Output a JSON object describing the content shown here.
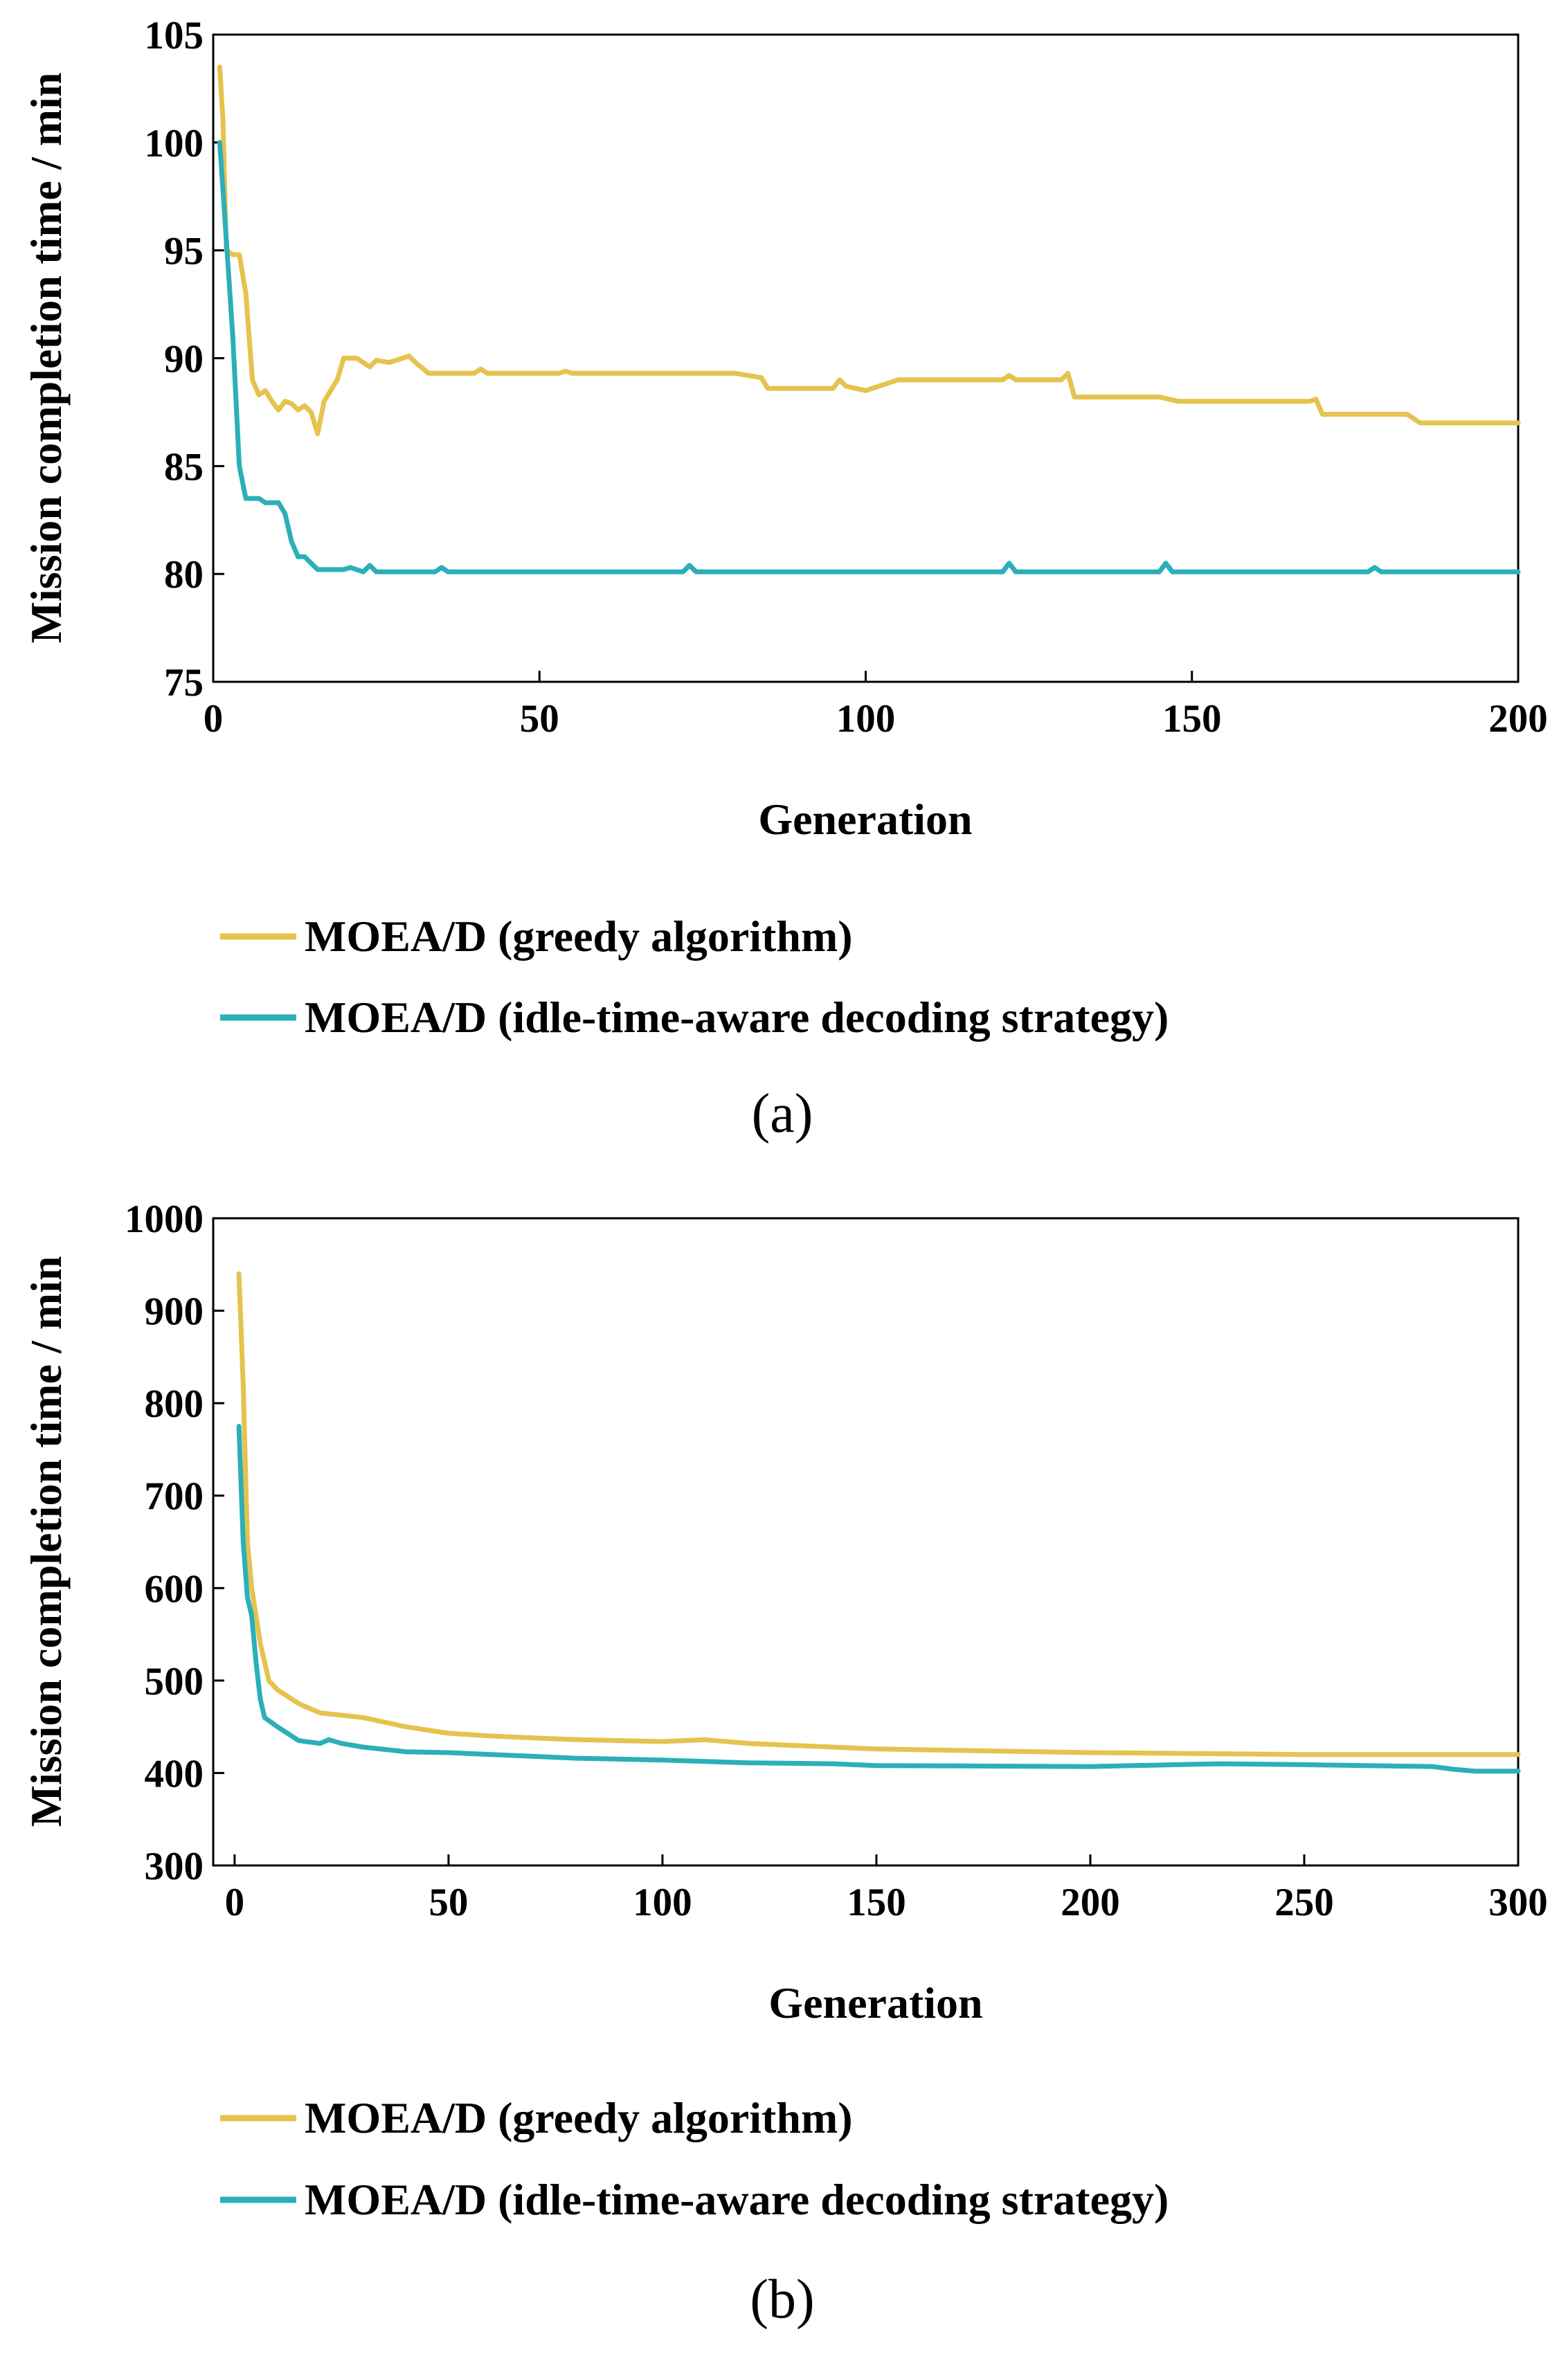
{
  "chart_data": [
    {
      "type": "line",
      "panel_label": "(a)",
      "xlabel": "Generation",
      "ylabel": "Mission completion time / min",
      "xlim": [
        0,
        200
      ],
      "ylim": [
        75,
        105
      ],
      "xticks": [
        0,
        50,
        100,
        150,
        200
      ],
      "xtick_labels": [
        "0",
        "50",
        "100",
        "150",
        "200"
      ],
      "yticks": [
        75,
        80,
        85,
        90,
        95,
        100,
        105
      ],
      "ytick_labels": [
        "75",
        "80",
        "85",
        "90",
        "95",
        "100",
        "105"
      ],
      "grid": false,
      "legend_position": "bottom",
      "series": [
        {
          "name": "MOEA/D (greedy algorithm)",
          "color": "#E6C24E",
          "x": [
            1,
            1.5,
            2,
            3,
            4,
            5,
            6,
            7,
            8,
            9,
            10,
            11,
            12,
            13,
            14,
            15,
            16,
            17,
            18,
            19,
            20,
            21,
            22,
            24,
            25,
            27,
            30,
            31,
            33,
            40,
            41,
            42,
            53,
            54,
            55,
            80,
            82,
            84,
            85,
            90,
            95,
            96,
            97,
            100,
            103,
            105,
            121,
            122,
            123,
            130,
            131,
            132,
            145,
            148,
            150,
            165,
            168,
            169,
            170,
            183,
            184,
            185,
            200
          ],
          "values": [
            103.5,
            101,
            95,
            94.8,
            94.8,
            93,
            89,
            88.3,
            88.5,
            88,
            87.6,
            88,
            87.9,
            87.6,
            87.8,
            87.5,
            86.5,
            88,
            88.5,
            89,
            90,
            90,
            90,
            89.6,
            89.9,
            89.8,
            90.1,
            89.8,
            89.3,
            89.3,
            89.5,
            89.3,
            89.3,
            89.4,
            89.3,
            89.3,
            89.2,
            89.1,
            88.6,
            88.6,
            88.6,
            89,
            88.7,
            88.5,
            88.8,
            89,
            89,
            89.2,
            89,
            89,
            89.3,
            88.2,
            88.2,
            88,
            88,
            88,
            88,
            88.1,
            87.4,
            87.4,
            87.2,
            87,
            87
          ]
        },
        {
          "name": "MOEA/D (idle-time-aware decoding strategy)",
          "color": "#2BAFB9",
          "x": [
            1,
            2,
            3,
            4,
            5,
            6,
            7,
            8,
            9,
            10,
            11,
            12,
            13,
            14,
            15,
            16,
            17,
            20,
            21,
            22,
            23,
            24,
            25,
            34,
            35,
            36,
            72,
            73,
            74,
            121,
            122,
            123,
            145,
            146,
            147,
            177,
            178,
            179,
            200
          ],
          "values": [
            100,
            95.5,
            91,
            85,
            83.5,
            83.5,
            83.5,
            83.3,
            83.3,
            83.3,
            82.8,
            81.5,
            80.8,
            80.8,
            80.5,
            80.2,
            80.2,
            80.2,
            80.3,
            80.2,
            80.1,
            80.4,
            80.1,
            80.1,
            80.3,
            80.1,
            80.1,
            80.4,
            80.1,
            80.1,
            80.5,
            80.1,
            80.1,
            80.5,
            80.1,
            80.1,
            80.3,
            80.1,
            80.1
          ]
        }
      ]
    },
    {
      "type": "line",
      "panel_label": "(b)",
      "xlabel": "Generation",
      "ylabel": "Mission completion time / min",
      "xlim": [
        -5,
        300
      ],
      "ylim": [
        300,
        1000
      ],
      "xticks": [
        0,
        50,
        100,
        150,
        200,
        250,
        300
      ],
      "xtick_labels": [
        "0",
        "50",
        "100",
        "150",
        "200",
        "250",
        "300"
      ],
      "yticks": [
        300,
        400,
        500,
        600,
        700,
        800,
        900,
        1000
      ],
      "ytick_labels": [
        "300",
        "400",
        "500",
        "600",
        "700",
        "800",
        "900",
        "1000"
      ],
      "grid": false,
      "legend_position": "bottom",
      "series": [
        {
          "name": "MOEA/D (greedy algorithm)",
          "color": "#E6C24E",
          "x": [
            1,
            2,
            3,
            4,
            5,
            6,
            7,
            8,
            10,
            15,
            20,
            30,
            40,
            50,
            60,
            70,
            80,
            100,
            110,
            120,
            150,
            200,
            250,
            300
          ],
          "values": [
            940,
            820,
            650,
            600,
            570,
            540,
            520,
            500,
            490,
            475,
            465,
            460,
            450,
            443,
            440,
            438,
            436,
            434,
            436,
            432,
            426,
            422,
            420,
            420
          ]
        },
        {
          "name": "MOEA/D (idle-time-aware decoding strategy)",
          "color": "#2BAFB9",
          "x": [
            1,
            2,
            3,
            4,
            5,
            6,
            7,
            10,
            15,
            20,
            22,
            25,
            30,
            40,
            50,
            60,
            70,
            80,
            100,
            120,
            140,
            150,
            200,
            220,
            230,
            250,
            280,
            285,
            290,
            300
          ],
          "values": [
            775,
            650,
            590,
            570,
            520,
            480,
            460,
            450,
            435,
            432,
            436,
            432,
            428,
            423,
            422,
            420,
            418,
            416,
            414,
            411,
            410,
            408,
            407,
            409,
            410,
            409,
            407,
            404,
            402,
            402
          ]
        }
      ]
    }
  ]
}
